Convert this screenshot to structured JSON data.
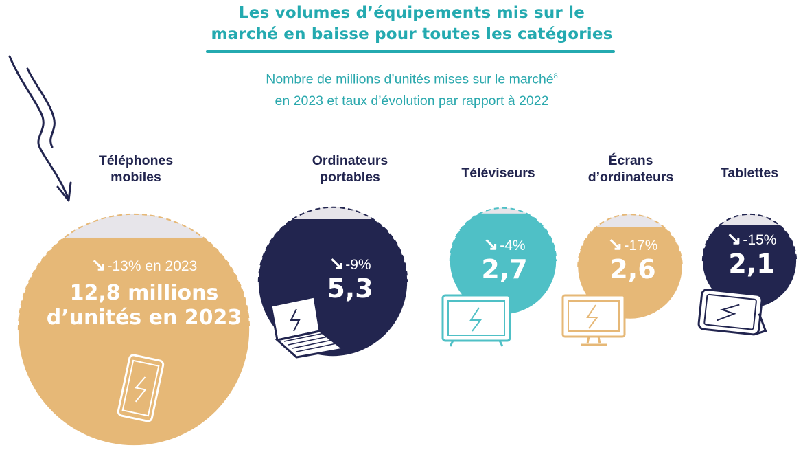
{
  "header": {
    "title_line1": "Les volumes d’équipements mis sur le",
    "title_line2": "marché en baisse pour toutes les catégories",
    "subtitle_line1": "Nombre de millions d’unités mises sur le marché",
    "subtitle_sup": "8",
    "subtitle_line2": "en 2023 et taux d’évolution par rapport à 2022"
  },
  "colors": {
    "teal": "#24aab0",
    "navy": "#22254f",
    "sand": "#e6b877",
    "turquoise": "#4fc0c6",
    "bubble_top": "#e7e5ea"
  },
  "chart_data": {
    "type": "bubble",
    "unit": "millions d’unités",
    "items": [
      {
        "label_line1": "Téléphones",
        "label_line2": "mobiles",
        "value": 12.8,
        "change_pct": -13,
        "change_text": "-13% en 2023",
        "value_line1": "12,8 millions",
        "value_line2": "d’unités en 2023",
        "color": "#e6b877",
        "icon": "smartphone-icon"
      },
      {
        "label_line1": "Ordinateurs",
        "label_line2": "portables",
        "value": 5.3,
        "change_pct": -9,
        "change_text": "-9%",
        "value_text": "5,3",
        "color": "#22254f",
        "icon": "laptop-icon"
      },
      {
        "label_line1": "Téléviseurs",
        "label_line2": "",
        "value": 2.7,
        "change_pct": -4,
        "change_text": "-4%",
        "value_text": "2,7",
        "color": "#4fc0c6",
        "icon": "tv-icon"
      },
      {
        "label_line1": "Écrans",
        "label_line2": "d’ordinateurs",
        "value": 2.6,
        "change_pct": -17,
        "change_text": "-17%",
        "value_text": "2,6",
        "color": "#e6b877",
        "icon": "monitor-icon"
      },
      {
        "label_line1": "Tablettes",
        "label_line2": "",
        "value": 2.1,
        "change_pct": -15,
        "change_text": "-15%",
        "value_text": "2,1",
        "color": "#22254f",
        "icon": "tablet-icon"
      }
    ]
  }
}
